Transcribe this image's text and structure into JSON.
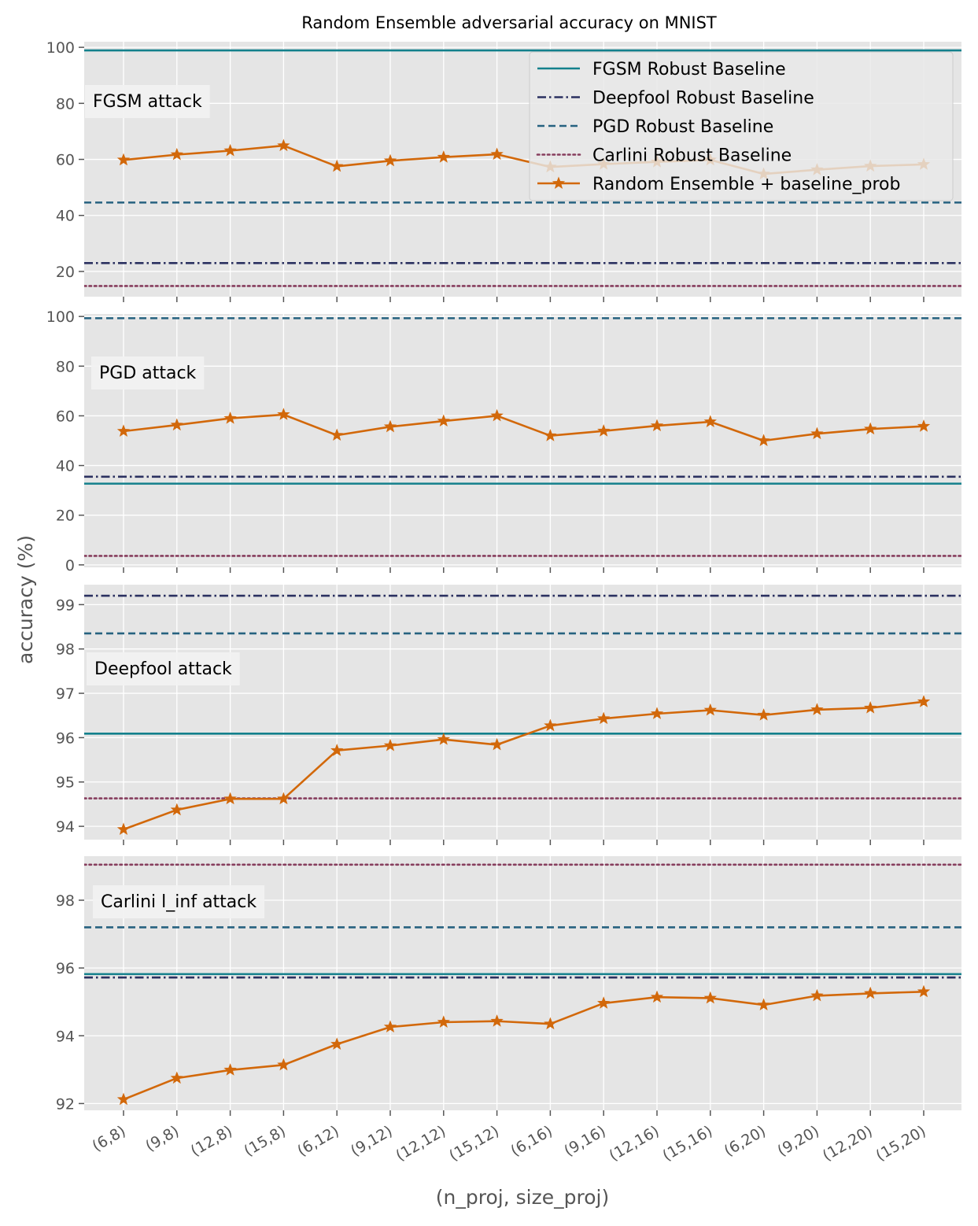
{
  "chart_data": {
    "type": "line",
    "title": "Random Ensemble adversarial accuracy on MNIST",
    "xlabel": "(n_proj, size_proj)",
    "ylabel": "accuracy (%)",
    "categories": [
      "(6,8)",
      "(9,8)",
      "(12,8)",
      "(15,8)",
      "(6,12)",
      "(9,12)",
      "(12,12)",
      "(15,12)",
      "(6,16)",
      "(9,16)",
      "(12,16)",
      "(15,16)",
      "(6,20)",
      "(9,20)",
      "(12,20)",
      "(15,20)"
    ],
    "grid": true,
    "legend": {
      "placement": "top-right",
      "entries": [
        {
          "name": "FGSM Robust Baseline",
          "color": "#13808c",
          "style": "solid"
        },
        {
          "name": "Deepfool Robust Baseline",
          "color": "#2b3160",
          "style": "dashdot"
        },
        {
          "name": "PGD Robust Baseline",
          "color": "#266280",
          "style": "dashed"
        },
        {
          "name": "Carlini Robust Baseline",
          "color": "#873e5e",
          "style": "dotted"
        },
        {
          "name": "Random Ensemble + baseline_prob",
          "color": "#d2680a",
          "style": "line-star"
        }
      ]
    },
    "colors": {
      "fgsm": "#13808c",
      "deepfool": "#2b3160",
      "pgd": "#266280",
      "carlini": "#873e5e",
      "ensemble": "#d2680a",
      "panel_bg": "#e5e5e5",
      "grid": "#ffffff"
    },
    "panels": [
      {
        "annotation": "FGSM attack",
        "ylim": [
          11,
          102
        ],
        "yticks": [
          20,
          40,
          60,
          80,
          100
        ],
        "baselines": {
          "fgsm": 98.9,
          "deepfool": 23.0,
          "pgd": 44.6,
          "carlini": 14.8
        },
        "values": [
          59.8,
          61.7,
          63.1,
          64.9,
          57.5,
          59.5,
          60.8,
          61.8,
          57.3,
          58.3,
          59.1,
          59.8,
          54.8,
          56.3,
          57.6,
          58.2
        ]
      },
      {
        "annotation": "PGD attack",
        "ylim": [
          -1,
          101
        ],
        "yticks": [
          0,
          20,
          40,
          60,
          80,
          100
        ],
        "baselines": {
          "fgsm": 32.7,
          "deepfool": 35.5,
          "pgd": 99.3,
          "carlini": 3.6
        },
        "values": [
          53.8,
          56.3,
          59.0,
          60.5,
          52.2,
          55.6,
          57.9,
          60.0,
          52.0,
          53.9,
          56.0,
          57.6,
          50.0,
          52.8,
          54.7,
          55.8
        ]
      },
      {
        "annotation": "Deepfool attack",
        "ylim": [
          93.7,
          99.45
        ],
        "yticks": [
          94,
          95,
          96,
          97,
          98,
          99
        ],
        "baselines": {
          "fgsm": 96.09,
          "deepfool": 99.2,
          "pgd": 98.35,
          "carlini": 94.63
        },
        "values": [
          93.93,
          94.37,
          94.62,
          94.62,
          95.71,
          95.82,
          95.96,
          95.84,
          96.27,
          96.43,
          96.54,
          96.62,
          96.51,
          96.63,
          96.67,
          96.81
        ]
      },
      {
        "annotation": "Carlini l_inf attack",
        "ylim": [
          91.8,
          99.3
        ],
        "yticks": [
          92,
          94,
          96,
          98
        ],
        "baselines": {
          "fgsm": 95.82,
          "deepfool": 95.72,
          "pgd": 97.2,
          "carlini": 99.05
        },
        "values": [
          92.12,
          92.75,
          92.99,
          93.14,
          93.75,
          94.26,
          94.4,
          94.43,
          94.35,
          94.96,
          95.14,
          95.11,
          94.91,
          95.18,
          95.25,
          95.3
        ]
      }
    ]
  }
}
